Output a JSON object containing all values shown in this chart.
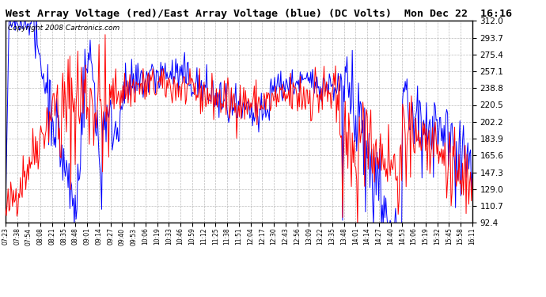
{
  "title": "West Array Voltage (red)/East Array Voltage (blue) (DC Volts)  Mon Dec 22  16:16",
  "copyright": "Copyright 2008 Cartronics.com",
  "yticks": [
    92.4,
    110.7,
    129.0,
    147.3,
    165.6,
    183.9,
    202.2,
    220.5,
    238.8,
    257.1,
    275.4,
    293.7,
    312.0
  ],
  "xtick_labels": [
    "07:23",
    "07:38",
    "07:54",
    "08:08",
    "08:21",
    "08:35",
    "08:48",
    "09:01",
    "09:14",
    "09:27",
    "09:40",
    "09:53",
    "10:06",
    "10:19",
    "10:33",
    "10:46",
    "10:59",
    "11:12",
    "11:25",
    "11:38",
    "11:51",
    "12:04",
    "12:17",
    "12:30",
    "12:43",
    "12:56",
    "13:09",
    "13:22",
    "13:35",
    "13:48",
    "14:01",
    "14:14",
    "14:27",
    "14:40",
    "14:53",
    "15:06",
    "15:19",
    "15:32",
    "15:45",
    "15:58",
    "16:11"
  ],
  "ymin": 92.4,
  "ymax": 312.0,
  "red_color": "#FF0000",
  "blue_color": "#0000FF",
  "bg_color": "#FFFFFF",
  "plot_bg": "#FFFFFF",
  "grid_color": "#AAAAAA",
  "title_color": "#000000",
  "title_fontsize": 9.5,
  "copyright_fontsize": 6.5,
  "linewidth": 0.7
}
